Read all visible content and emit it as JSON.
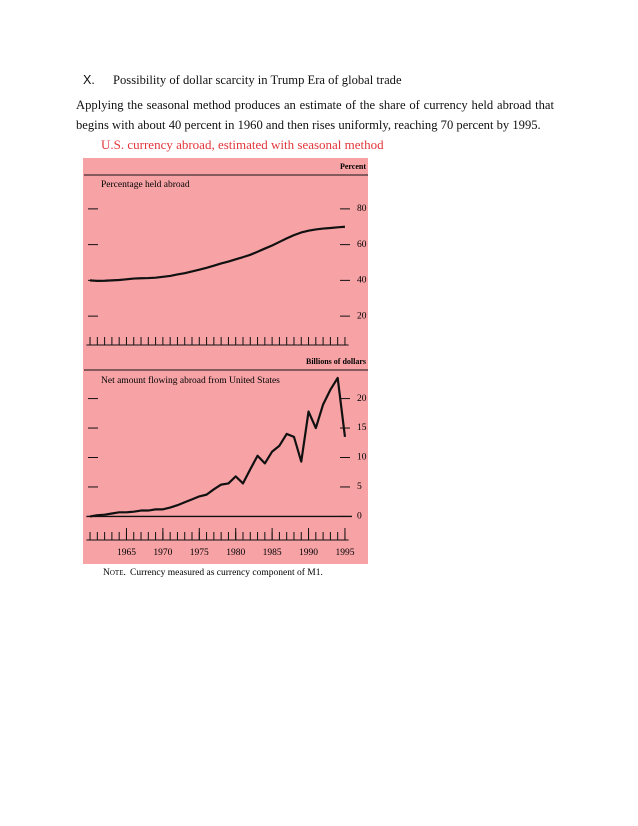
{
  "heading": {
    "number": "X.",
    "title": "Possibility of dollar scarcity in Trump Era of global trade"
  },
  "paragraph": "Applying the seasonal method produces an estimate of the share of currency held abroad that begins with about 40 percent in 1960 and then rises uniformly, reaching 70 percent by 1995.",
  "figure": {
    "title": "U.S. currency abroad, estimated with seasonal method",
    "note_label": "Note.",
    "note": "Currency measured as currency component of M1."
  },
  "chart_data": [
    {
      "type": "line",
      "title": "Percentage held abroad",
      "unit_label": "Percent",
      "color": "#111111",
      "x": [
        1960,
        1961,
        1962,
        1963,
        1964,
        1965,
        1966,
        1967,
        1968,
        1969,
        1970,
        1971,
        1972,
        1973,
        1974,
        1975,
        1976,
        1977,
        1978,
        1979,
        1980,
        1981,
        1982,
        1983,
        1984,
        1985,
        1986,
        1987,
        1988,
        1989,
        1990,
        1991,
        1992,
        1993,
        1994,
        1995
      ],
      "values": [
        40,
        39.7,
        39.8,
        40,
        40.2,
        40.6,
        41,
        41.2,
        41.3,
        41.5,
        42,
        42.5,
        43.3,
        44,
        45,
        46,
        47,
        48.2,
        49.5,
        50.5,
        51.8,
        53,
        54.3,
        56,
        57.8,
        59.5,
        61.5,
        63.5,
        65.3,
        66.8,
        67.8,
        68.5,
        69,
        69.3,
        69.7,
        70
      ],
      "xlim": [
        1959.5,
        1995.5
      ],
      "ylim": [
        10,
        90
      ],
      "yticks": [
        20,
        40,
        60,
        80
      ]
    },
    {
      "type": "line",
      "title": "Net amount flowing abroad from United States",
      "unit_label": "Billions of dollars",
      "color": "#111111",
      "x": [
        1960,
        1961,
        1962,
        1963,
        1964,
        1965,
        1966,
        1967,
        1968,
        1969,
        1970,
        1971,
        1972,
        1973,
        1974,
        1975,
        1976,
        1977,
        1978,
        1979,
        1980,
        1981,
        1982,
        1983,
        1984,
        1985,
        1986,
        1987,
        1988,
        1989,
        1990,
        1991,
        1992,
        1993,
        1994,
        1995
      ],
      "values": [
        0,
        0.2,
        0.3,
        0.5,
        0.7,
        0.7,
        0.8,
        1,
        1,
        1.2,
        1.2,
        1.5,
        1.9,
        2.4,
        2.9,
        3.4,
        3.7,
        4.6,
        5.4,
        5.6,
        6.8,
        5.6,
        8,
        10.3,
        9,
        11,
        12,
        14,
        13.5,
        9.3,
        17.8,
        15,
        19,
        21.5,
        23.5,
        13.5
      ],
      "xlim": [
        1959.5,
        1995.5
      ],
      "ylim": [
        -4,
        24
      ],
      "yticks": [
        0,
        5,
        10,
        15,
        20
      ],
      "xticks": [
        1965,
        1970,
        1975,
        1980,
        1985,
        1990,
        1995
      ]
    }
  ]
}
